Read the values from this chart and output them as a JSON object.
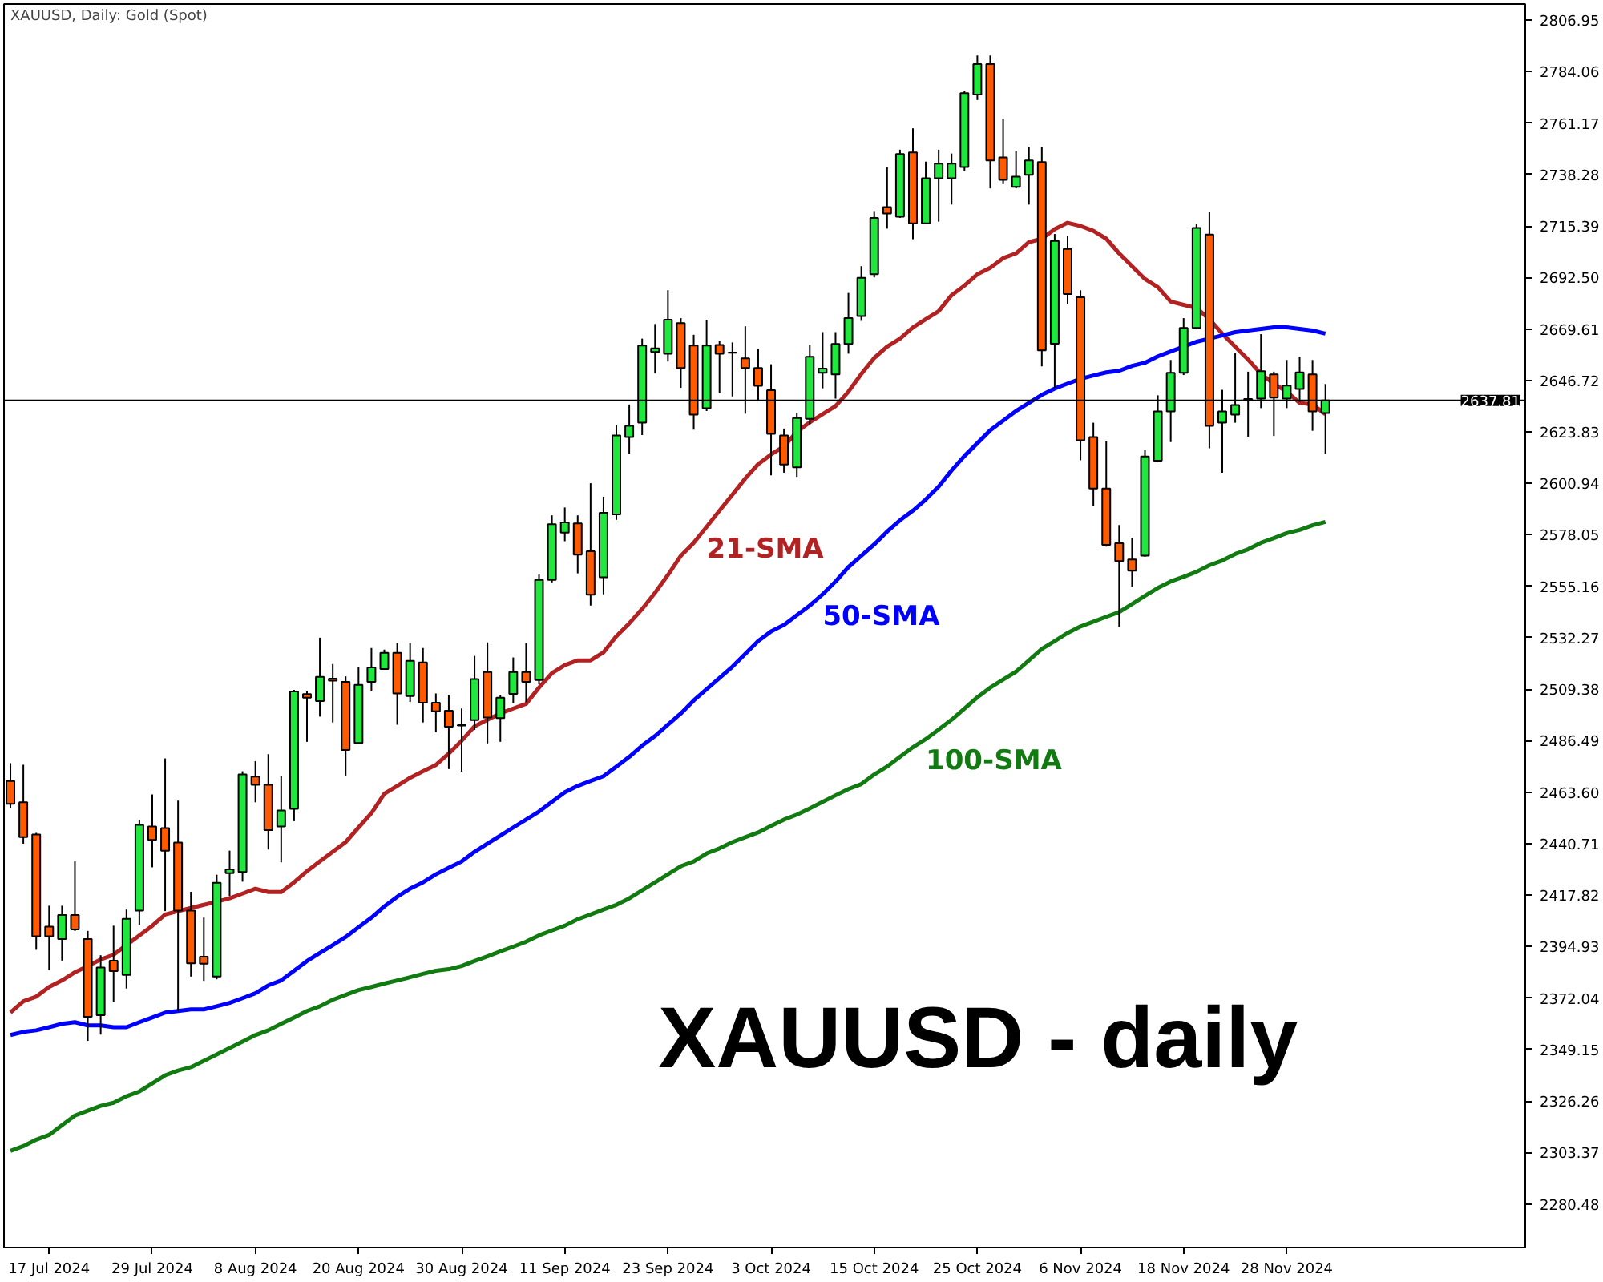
{
  "chart_data": {
    "type": "candlestick",
    "title": "XAUUSD, Daily:  Gold (Spot)",
    "categories": [
      null,
      null,
      null,
      "17 Jul 2024",
      null,
      null,
      null,
      null,
      null,
      null,
      null,
      "29 Jul 2024",
      null,
      null,
      null,
      null,
      null,
      null,
      null,
      "8 Aug 2024",
      null,
      null,
      null,
      null,
      null,
      null,
      null,
      "20 Aug 2024",
      null,
      null,
      null,
      null,
      null,
      null,
      null,
      "30 Aug 2024",
      null,
      null,
      null,
      null,
      null,
      null,
      null,
      "11 Sep 2024",
      null,
      null,
      null,
      null,
      null,
      null,
      null,
      "23 Sep 2024",
      null,
      null,
      null,
      null,
      null,
      null,
      null,
      "3 Oct 2024",
      null,
      null,
      null,
      null,
      null,
      null,
      null,
      "15 Oct 2024",
      null,
      null,
      null,
      null,
      null,
      null,
      null,
      "25 Oct 2024",
      null,
      null,
      null,
      null,
      null,
      null,
      null,
      "6 Nov 2024",
      null,
      null,
      null,
      null,
      null,
      null,
      null,
      "18 Nov 2024",
      null,
      null,
      null,
      null,
      null,
      null,
      null,
      "28 Nov 2024",
      null,
      null,
      null
    ],
    "ohlc": [
      [
        2468.6,
        2476.5,
        2456.7,
        2458.4
      ],
      [
        2459.1,
        2475.8,
        2440.7,
        2443.6
      ],
      [
        2444.8,
        2445.5,
        2393.5,
        2399.5
      ],
      [
        2403.8,
        2413.1,
        2384.5,
        2399.5
      ],
      [
        2398.3,
        2413.1,
        2388.7,
        2409.0
      ],
      [
        2409.0,
        2432.8,
        2401.9,
        2402.6
      ],
      [
        2398.3,
        2401.9,
        2353.0,
        2363.7
      ],
      [
        2364.4,
        2391.1,
        2355.8,
        2385.6
      ],
      [
        2388.7,
        2404.2,
        2370.2,
        2384.0
      ],
      [
        2382.3,
        2411.4,
        2376.3,
        2407.3
      ],
      [
        2410.9,
        2451.2,
        2404.7,
        2449.1
      ],
      [
        2448.3,
        2462.6,
        2430.2,
        2442.4
      ],
      [
        2447.6,
        2478.6,
        2410.7,
        2437.6
      ],
      [
        2441.2,
        2459.8,
        2366.1,
        2410.9
      ],
      [
        2410.9,
        2419.3,
        2381.6,
        2387.5
      ],
      [
        2390.4,
        2407.8,
        2379.7,
        2387.3
      ],
      [
        2381.6,
        2426.9,
        2380.4,
        2423.3
      ],
      [
        2427.6,
        2437.6,
        2417.4,
        2429.3
      ],
      [
        2428.1,
        2472.9,
        2423.8,
        2471.5
      ],
      [
        2470.5,
        2477.4,
        2459.1,
        2466.9
      ],
      [
        2466.9,
        2480.5,
        2438.1,
        2446.7
      ],
      [
        2448.3,
        2470.8,
        2432.4,
        2455.5
      ],
      [
        2456.2,
        2509.1,
        2450.7,
        2508.4
      ],
      [
        2507.2,
        2508.4,
        2486.0,
        2505.6
      ],
      [
        2504.1,
        2532.3,
        2497.2,
        2514.9
      ],
      [
        2514.1,
        2520.6,
        2494.6,
        2513.2
      ],
      [
        2512.7,
        2515.1,
        2471.0,
        2482.4
      ],
      [
        2485.5,
        2519.4,
        2485.1,
        2511.3
      ],
      [
        2512.7,
        2527.7,
        2508.7,
        2519.1
      ],
      [
        2518.4,
        2527.0,
        2518.0,
        2525.6
      ],
      [
        2525.6,
        2529.9,
        2493.6,
        2507.5
      ],
      [
        2506.3,
        2529.9,
        2503.7,
        2522.0
      ],
      [
        2521.3,
        2527.7,
        2494.6,
        2503.4
      ],
      [
        2503.4,
        2507.5,
        2490.3,
        2499.6
      ],
      [
        2499.8,
        2506.8,
        2473.9,
        2492.7
      ],
      [
        2493.2,
        2500.8,
        2472.7,
        2493.4
      ],
      [
        2495.6,
        2524.2,
        2491.3,
        2513.9
      ],
      [
        2517.0,
        2530.2,
        2485.3,
        2496.8
      ],
      [
        2496.5,
        2506.8,
        2486.0,
        2505.6
      ],
      [
        2507.3,
        2523.5,
        2503.2,
        2517.0
      ],
      [
        2517.0,
        2529.9,
        2503.7,
        2512.7
      ],
      [
        2513.5,
        2560.4,
        2511.6,
        2558.0
      ],
      [
        2558.0,
        2586.7,
        2556.9,
        2582.8
      ],
      [
        2579.0,
        2590.2,
        2575.2,
        2583.6
      ],
      [
        2583.1,
        2586.7,
        2560.9,
        2569.2
      ],
      [
        2570.7,
        2601.0,
        2546.6,
        2551.4
      ],
      [
        2559.2,
        2595.0,
        2551.6,
        2587.8
      ],
      [
        2587.1,
        2626.7,
        2584.7,
        2622.2
      ],
      [
        2621.5,
        2636.0,
        2614.1,
        2626.5
      ],
      [
        2627.9,
        2665.3,
        2622.4,
        2662.2
      ],
      [
        2659.4,
        2671.8,
        2649.8,
        2661.0
      ],
      [
        2658.6,
        2686.8,
        2655.1,
        2673.7
      ],
      [
        2672.2,
        2674.4,
        2643.4,
        2652.2
      ],
      [
        2662.2,
        2667.0,
        2624.8,
        2631.5
      ],
      [
        2634.3,
        2673.7,
        2633.1,
        2662.2
      ],
      [
        2662.5,
        2664.1,
        2641.0,
        2658.6
      ],
      [
        2659.1,
        2663.6,
        2639.6,
        2659.0
      ],
      [
        2656.5,
        2670.8,
        2631.9,
        2652.2
      ],
      [
        2652.2,
        2660.6,
        2637.9,
        2644.3
      ],
      [
        2642.4,
        2653.9,
        2604.5,
        2622.9
      ],
      [
        2622.2,
        2625.3,
        2605.7,
        2609.3
      ],
      [
        2608.1,
        2632.4,
        2603.8,
        2630.0
      ],
      [
        2629.6,
        2662.5,
        2627.2,
        2657.2
      ],
      [
        2650.1,
        2668.2,
        2643.2,
        2652.0
      ],
      [
        2649.4,
        2668.2,
        2638.6,
        2662.9
      ],
      [
        2662.9,
        2685.6,
        2658.6,
        2674.4
      ],
      [
        2675.3,
        2697.5,
        2673.2,
        2692.3
      ],
      [
        2693.9,
        2722.0,
        2692.5,
        2719.0
      ],
      [
        2723.8,
        2741.6,
        2714.2,
        2720.9
      ],
      [
        2719.5,
        2749.3,
        2719.0,
        2747.4
      ],
      [
        2748.1,
        2758.8,
        2709.5,
        2716.6
      ],
      [
        2716.6,
        2744.0,
        2716.1,
        2736.6
      ],
      [
        2736.6,
        2749.3,
        2717.3,
        2743.1
      ],
      [
        2736.6,
        2747.6,
        2724.9,
        2743.1
      ],
      [
        2741.6,
        2775.5,
        2740.0,
        2774.5
      ],
      [
        2773.8,
        2791.2,
        2771.4,
        2787.4
      ],
      [
        2787.4,
        2791.2,
        2732.1,
        2744.5
      ],
      [
        2745.9,
        2763.1,
        2734.0,
        2735.9
      ],
      [
        2732.8,
        2748.8,
        2732.1,
        2737.3
      ],
      [
        2738.1,
        2750.5,
        2724.9,
        2744.5
      ],
      [
        2743.8,
        2750.5,
        2653.0,
        2660.1
      ],
      [
        2663.0,
        2711.8,
        2643.4,
        2708.7
      ],
      [
        2705.2,
        2711.1,
        2680.8,
        2685.1
      ],
      [
        2683.7,
        2686.8,
        2611.2,
        2620.1
      ],
      [
        2621.5,
        2627.9,
        2590.7,
        2598.6
      ],
      [
        2598.6,
        2619.6,
        2572.8,
        2573.6
      ],
      [
        2574.3,
        2582.4,
        2537.1,
        2566.4
      ],
      [
        2567.1,
        2576.7,
        2555.0,
        2562.1
      ],
      [
        2568.8,
        2615.8,
        2568.3,
        2612.9
      ],
      [
        2611.0,
        2640.1,
        2610.5,
        2632.9
      ],
      [
        2632.9,
        2655.8,
        2619.3,
        2650.1
      ],
      [
        2650.1,
        2674.4,
        2649.1,
        2670.1
      ],
      [
        2670.1,
        2716.1,
        2669.4,
        2714.5
      ],
      [
        2711.6,
        2721.8,
        2616.5,
        2626.5
      ],
      [
        2627.9,
        2642.5,
        2605.7,
        2632.9
      ],
      [
        2631.5,
        2658.9,
        2627.9,
        2635.8
      ],
      [
        2638.2,
        2650.6,
        2621.7,
        2638.4
      ],
      [
        2638.6,
        2667.3,
        2634.4,
        2650.8
      ],
      [
        2649.4,
        2650.6,
        2622.0,
        2639.1
      ],
      [
        2638.6,
        2655.8,
        2634.4,
        2644.4
      ],
      [
        2642.9,
        2657.2,
        2637.2,
        2650.3
      ],
      [
        2649.4,
        2655.8,
        2624.3,
        2632.9
      ],
      [
        2632.2,
        2645.1,
        2614.1,
        2637.81
      ]
    ],
    "colors": [
      "#ff5a00",
      "#ff5a00",
      "#ff5a00",
      "#ff5a00",
      "#1ee83c",
      "#ff5a00",
      "#ff5a00",
      "#1ee83c",
      "#ff5a00",
      "#1ee83c",
      "#1ee83c",
      "#ff5a00",
      "#ff5a00",
      "#ff5a00",
      "#ff5a00",
      "#ff5a00",
      "#1ee83c",
      "#1ee83c",
      "#1ee83c",
      "#ff5a00",
      "#ff5a00",
      "#1ee83c",
      "#1ee83c",
      "#ff5a00",
      "#1ee83c",
      "#ff5a00",
      "#ff5a00",
      "#1ee83c",
      "#1ee83c",
      "#1ee83c",
      "#ff5a00",
      "#1ee83c",
      "#ff5a00",
      "#ff5a00",
      "#ff5a00",
      "#1ee83c",
      "#1ee83c",
      "#ff5a00",
      "#1ee83c",
      "#1ee83c",
      "#ff5a00",
      "#1ee83c",
      "#1ee83c",
      "#1ee83c",
      "#ff5a00",
      "#ff5a00",
      "#1ee83c",
      "#1ee83c",
      "#1ee83c",
      "#1ee83c",
      "#1ee83c",
      "#1ee83c",
      "#ff5a00",
      "#ff5a00",
      "#1ee83c",
      "#ff5a00",
      "#ff5a00",
      "#ff5a00",
      "#ff5a00",
      "#ff5a00",
      "#ff5a00",
      "#1ee83c",
      "#1ee83c",
      "#1ee83c",
      "#1ee83c",
      "#1ee83c",
      "#1ee83c",
      "#1ee83c",
      "#ff5a00",
      "#1ee83c",
      "#ff5a00",
      "#1ee83c",
      "#1ee83c",
      "#1ee83c",
      "#1ee83c",
      "#1ee83c",
      "#ff5a00",
      "#ff5a00",
      "#1ee83c",
      "#1ee83c",
      "#ff5a00",
      "#1ee83c",
      "#ff5a00",
      "#ff5a00",
      "#ff5a00",
      "#ff5a00",
      "#ff5a00",
      "#ff5a00",
      "#1ee83c",
      "#1ee83c",
      "#1ee83c",
      "#1ee83c",
      "#1ee83c",
      "#ff5a00",
      "#1ee83c",
      "#1ee83c",
      "#1ee83c",
      "#1ee83c",
      "#ff5a00",
      "#1ee83c",
      "#1ee83c",
      "#ff5a00",
      "#1ee83c"
    ],
    "series": [
      {
        "type": "line",
        "name": "21-SMA",
        "color": "#b22222",
        "values": [
          2365.6,
          2370.6,
          2372.7,
          2377.0,
          2379.9,
          2383.5,
          2386.3,
          2389.2,
          2391.3,
          2395.6,
          2399.9,
          2404.2,
          2409.2,
          2410.7,
          2412.1,
          2413.5,
          2414.9,
          2416.4,
          2418.5,
          2420.7,
          2419.2,
          2419.2,
          2423.5,
          2428.5,
          2432.8,
          2437.1,
          2441.4,
          2447.9,
          2454.3,
          2462.9,
          2466.4,
          2470.0,
          2472.9,
          2475.7,
          2480.8,
          2486.5,
          2492.9,
          2495.8,
          2498.6,
          2500.8,
          2502.9,
          2510.1,
          2516.5,
          2520.1,
          2522.2,
          2522.2,
          2525.8,
          2533.0,
          2538.7,
          2545.1,
          2552.3,
          2560.2,
          2568.7,
          2574.5,
          2581.6,
          2588.8,
          2595.9,
          2603.1,
          2609.5,
          2613.8,
          2617.4,
          2623.8,
          2628.1,
          2631.7,
          2635.3,
          2641.7,
          2649.6,
          2656.7,
          2661.7,
          2665.3,
          2670.3,
          2673.9,
          2677.5,
          2684.6,
          2688.9,
          2693.9,
          2696.8,
          2701.1,
          2703.2,
          2708.2,
          2709.7,
          2714.0,
          2716.8,
          2715.4,
          2713.2,
          2709.7,
          2703.2,
          2697.5,
          2691.8,
          2688.2,
          2681.8,
          2680.3,
          2678.9,
          2673.9,
          2667.5,
          2661.7,
          2656.0,
          2649.6,
          2645.3,
          2641.7,
          2636.7,
          2636.0,
          2631.7
        ]
      },
      {
        "type": "line",
        "name": "50-SMA",
        "color": "#0000ff",
        "values": [
          2355.6,
          2357.0,
          2357.7,
          2359.1,
          2360.6,
          2361.3,
          2359.9,
          2359.9,
          2359.1,
          2359.1,
          2361.3,
          2363.4,
          2365.6,
          2366.3,
          2367.0,
          2367.0,
          2368.4,
          2369.9,
          2372.0,
          2374.2,
          2377.7,
          2379.9,
          2384.2,
          2388.5,
          2392.1,
          2395.6,
          2399.2,
          2403.5,
          2407.8,
          2412.8,
          2417.1,
          2420.7,
          2423.5,
          2427.1,
          2430.0,
          2432.8,
          2437.1,
          2440.7,
          2444.3,
          2447.9,
          2451.4,
          2455.0,
          2459.3,
          2463.6,
          2466.4,
          2468.6,
          2470.7,
          2475.0,
          2479.3,
          2484.3,
          2488.6,
          2493.6,
          2498.6,
          2504.4,
          2509.4,
          2514.4,
          2519.4,
          2525.1,
          2530.8,
          2535.1,
          2538.0,
          2542.3,
          2546.6,
          2551.6,
          2557.3,
          2563.7,
          2568.7,
          2573.8,
          2579.5,
          2584.5,
          2588.8,
          2593.8,
          2599.5,
          2606.7,
          2613.1,
          2618.8,
          2624.5,
          2628.8,
          2633.1,
          2636.7,
          2640.3,
          2643.1,
          2645.3,
          2647.4,
          2648.9,
          2650.3,
          2651.0,
          2653.2,
          2654.6,
          2657.4,
          2659.6,
          2661.7,
          2663.9,
          2665.3,
          2666.7,
          2668.2,
          2668.9,
          2669.6,
          2670.3,
          2670.3,
          2669.6,
          2668.9,
          2667.5
        ]
      },
      {
        "type": "line",
        "name": "100-SMA",
        "color": "#117a11",
        "values": [
          2304.1,
          2306.2,
          2309.1,
          2311.2,
          2315.5,
          2319.8,
          2322.0,
          2324.1,
          2325.5,
          2328.4,
          2330.5,
          2334.1,
          2337.7,
          2339.8,
          2341.3,
          2344.1,
          2347.0,
          2349.8,
          2352.7,
          2355.6,
          2357.7,
          2360.6,
          2363.4,
          2366.3,
          2368.4,
          2371.3,
          2373.5,
          2375.6,
          2377.0,
          2378.5,
          2379.9,
          2381.3,
          2382.8,
          2384.2,
          2384.9,
          2386.3,
          2388.5,
          2390.6,
          2392.8,
          2394.9,
          2397.1,
          2399.9,
          2402.1,
          2404.2,
          2407.1,
          2409.2,
          2411.4,
          2413.5,
          2416.4,
          2420.0,
          2423.5,
          2427.1,
          2430.7,
          2432.8,
          2436.4,
          2438.6,
          2441.4,
          2443.6,
          2445.7,
          2448.6,
          2451.4,
          2453.6,
          2456.4,
          2459.3,
          2462.2,
          2465.0,
          2467.2,
          2471.5,
          2475.0,
          2479.3,
          2483.6,
          2487.2,
          2491.5,
          2495.8,
          2500.8,
          2505.8,
          2510.1,
          2513.7,
          2517.2,
          2522.2,
          2527.3,
          2530.8,
          2534.4,
          2537.3,
          2539.4,
          2541.6,
          2543.7,
          2547.3,
          2550.9,
          2554.4,
          2557.3,
          2559.4,
          2561.6,
          2564.5,
          2566.6,
          2569.5,
          2571.6,
          2574.5,
          2576.6,
          2578.8,
          2580.2,
          2582.3,
          2583.8
        ]
      }
    ],
    "ylim": [
      2261.1,
      2814.1
    ],
    "yticks": [
      2806.95,
      2784.06,
      2761.17,
      2738.28,
      2715.39,
      {
        "value": 2692.5,
        "label": "2692.50"
      },
      2669.61,
      2646.72,
      2623.83,
      2600.94,
      2578.05,
      2555.16,
      2532.27,
      2509.38,
      2486.49,
      {
        "value": 2463.6,
        "label": "2463.60"
      },
      2440.71,
      2417.82,
      2394.93,
      2372.04,
      2349.15,
      2326.26,
      2303.37,
      2280.48
    ],
    "ref_lines": [
      {
        "axis": "y",
        "value": 2637.81,
        "label": "2637.81",
        "color": "#000000"
      }
    ],
    "annotations": [
      "XAUUSD - daily"
    ]
  }
}
